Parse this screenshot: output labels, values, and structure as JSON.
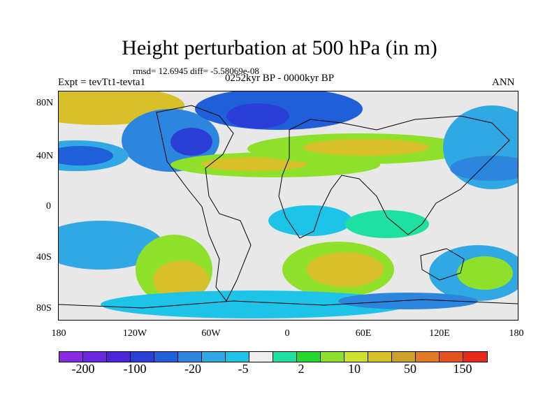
{
  "title": "Height perturbation at 500 hPa (in m)",
  "stats": "rmsd= 12.6945 diff= -5.58069e-08",
  "left_label": "Expt = tevTt1-tevta1",
  "center_label": "0252kyr BP - 0000kyr BP",
  "right_label": "ANN",
  "lat_ticks": [
    "80N",
    "40N",
    "0",
    "40S",
    "80S"
  ],
  "lon_ticks": [
    "180",
    "120W",
    "60W",
    "0",
    "60E",
    "120E",
    "180"
  ],
  "colorbar": {
    "colors": [
      "#8a2be2",
      "#6a28e0",
      "#4a25d9",
      "#2b3fd6",
      "#1f5fd8",
      "#2d86de",
      "#30a8e3",
      "#1ec3e8",
      "#eeeeee",
      "#1ee0a0",
      "#24d830",
      "#8ee02a",
      "#cfe12e",
      "#d8c02a",
      "#cda028",
      "#e07a24",
      "#e4521f",
      "#e62b1a"
    ],
    "labels": [
      "-200",
      "-100",
      "-20",
      "-5",
      "2",
      "10",
      "50",
      "150"
    ]
  },
  "chart_data": {
    "type": "heatmap",
    "title": "Height perturbation at 500 hPa (in m)",
    "xlabel": "",
    "ylabel": "",
    "xlim": [
      -180,
      180
    ],
    "ylim": [
      -90,
      90
    ],
    "colorbar_ticks": [
      -200,
      -100,
      -20,
      -5,
      2,
      10,
      50,
      150
    ]
  }
}
